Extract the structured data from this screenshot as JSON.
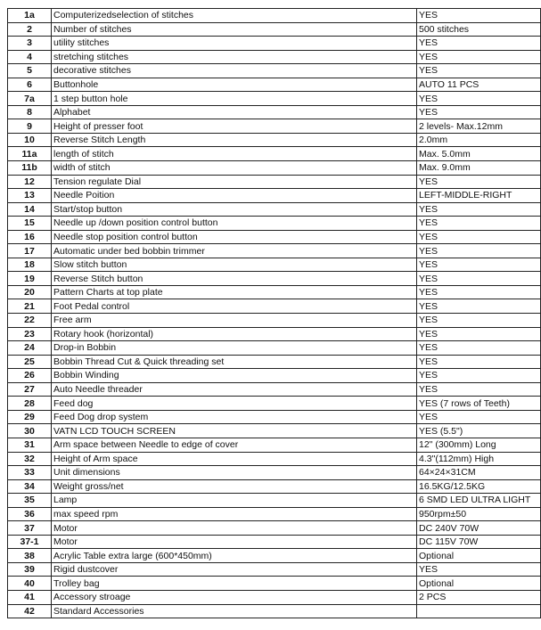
{
  "table": {
    "rows": [
      [
        "1a",
        "Computerizedselection of stitches",
        "YES"
      ],
      [
        "2",
        "Number of stitches",
        "500 stitches"
      ],
      [
        "3",
        "utility stitches",
        "YES"
      ],
      [
        "4",
        "stretching stitches",
        "YES"
      ],
      [
        "5",
        "decorative stitches",
        "YES"
      ],
      [
        "6",
        "Buttonhole",
        "AUTO 11 PCS"
      ],
      [
        "7a",
        "1 step button hole",
        "YES"
      ],
      [
        "8",
        "Alphabet",
        "YES"
      ],
      [
        "9",
        "Height of presser foot",
        "2 levels- Max.12mm"
      ],
      [
        "10",
        "Reverse Stitch Length",
        "2.0mm"
      ],
      [
        "11a",
        "length of stitch",
        "Max. 5.0mm"
      ],
      [
        "11b",
        "width of stitch",
        "Max. 9.0mm"
      ],
      [
        "12",
        "Tension regulate Dial",
        "YES"
      ],
      [
        "13",
        "Needle Poition",
        "LEFT-MIDDLE-RIGHT"
      ],
      [
        "14",
        "Start/stop button",
        "YES"
      ],
      [
        "15",
        "Needle up /down position control button",
        "YES"
      ],
      [
        "16",
        "Needle stop position control button",
        "YES"
      ],
      [
        "17",
        "Automatic under bed bobbin trimmer",
        "YES"
      ],
      [
        "18",
        "Slow stitch button",
        "YES"
      ],
      [
        "19",
        "Reverse Stitch button",
        "YES"
      ],
      [
        "20",
        "Pattern Charts at top plate",
        "YES"
      ],
      [
        "21",
        "Foot Pedal control",
        "YES"
      ],
      [
        "22",
        "Free arm",
        "YES"
      ],
      [
        "23",
        "Rotary hook (horizontal)",
        "YES"
      ],
      [
        "24",
        "Drop-in Bobbin",
        "YES"
      ],
      [
        "25",
        "Bobbin Thread Cut & Quick threading set",
        "YES"
      ],
      [
        "26",
        "Bobbin Winding",
        "YES"
      ],
      [
        "27",
        "Auto Needle threader",
        "YES"
      ],
      [
        "28",
        "Feed dog",
        "YES (7 rows of Teeth)"
      ],
      [
        "29",
        "Feed Dog drop system",
        "YES"
      ],
      [
        "30",
        "VATN LCD TOUCH SCREEN",
        "YES (5.5\")"
      ],
      [
        "31",
        "Arm space between Needle to edge of cover",
        "12\" (300mm) Long"
      ],
      [
        "32",
        "Height of Arm space",
        "4.3\"(112mm) High"
      ],
      [
        "33",
        "Unit dimensions",
        "64×24×31CM"
      ],
      [
        "34",
        "Weight gross/net",
        "16.5KG/12.5KG"
      ],
      [
        "35",
        "Lamp",
        "6 SMD LED ULTRA LIGHT"
      ],
      [
        "36",
        "max speed rpm",
        "950rpm±50"
      ],
      [
        "37",
        "Motor",
        "DC 240V 70W"
      ],
      [
        "37-1",
        "Motor",
        "DC 115V 70W"
      ],
      [
        "38",
        "Acrylic Table extra large (600*450mm)",
        "Optional"
      ],
      [
        "39",
        "Rigid dustcover",
        "YES"
      ],
      [
        "40",
        "Trolley bag",
        "Optional"
      ],
      [
        "41",
        "Accessory stroage",
        "2 PCS"
      ],
      [
        "42",
        "Standard Accessories"
      ]
    ]
  }
}
